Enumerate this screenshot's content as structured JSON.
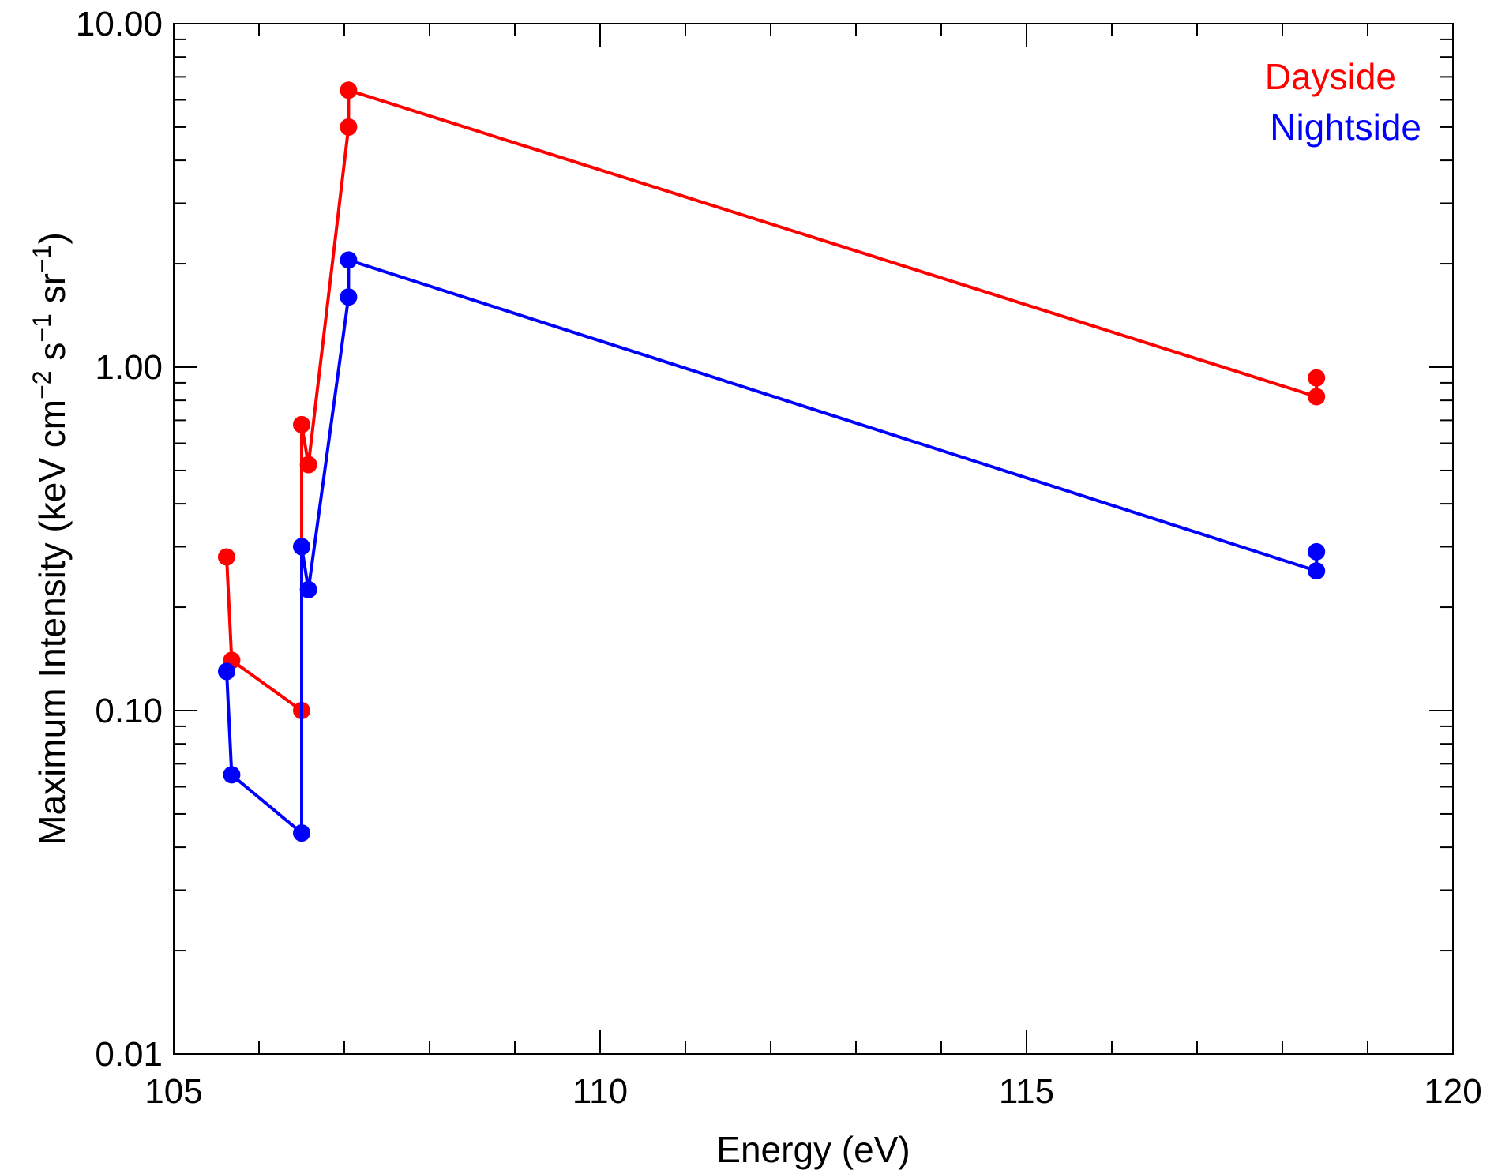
{
  "chart_data": {
    "type": "line",
    "title": "",
    "xlabel": "Energy (eV)",
    "ylabel": {
      "prefix": "Maximum Intensity (keV cm",
      "exp1": "−2",
      "mid": " s",
      "exp2": "−1",
      "mid2": " sr",
      "exp3": "−1",
      "suffix": ")"
    },
    "xlim": [
      105,
      120
    ],
    "ylim": [
      0.01,
      10
    ],
    "yscale": "log",
    "x_ticks": [
      "105",
      "110",
      "115",
      "120"
    ],
    "y_ticks": [
      "0.01",
      "0.10",
      "1.00",
      "10.00"
    ],
    "legend_position": "top-right",
    "series": [
      {
        "name": "Dayside",
        "color": "#ff0000",
        "x": [
          105.62,
          105.68,
          106.5,
          106.5,
          106.58,
          107.05,
          107.05,
          118.4,
          118.4
        ],
        "y": [
          0.28,
          0.14,
          0.1,
          0.68,
          0.52,
          5.0,
          6.4,
          0.82,
          0.93
        ]
      },
      {
        "name": "Nightside",
        "color": "#0000ff",
        "x": [
          105.62,
          105.68,
          106.5,
          106.5,
          106.58,
          107.05,
          107.05,
          118.4,
          118.4
        ],
        "y": [
          0.13,
          0.065,
          0.044,
          0.3,
          0.225,
          1.6,
          2.05,
          0.255,
          0.29
        ]
      }
    ]
  }
}
